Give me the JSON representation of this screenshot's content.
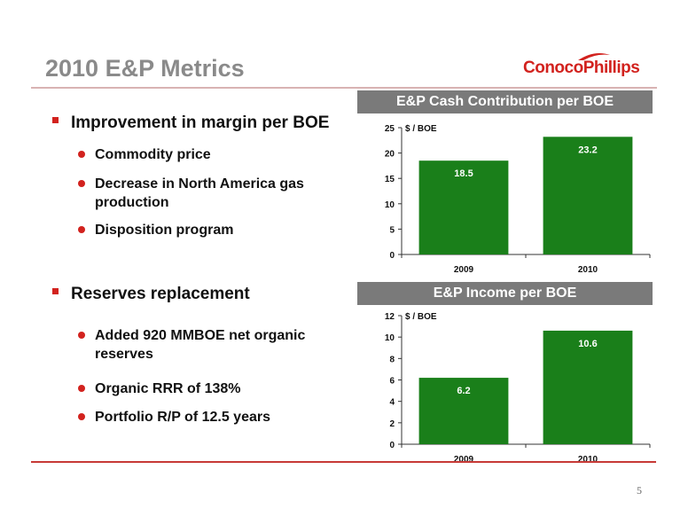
{
  "slide": {
    "title": "2010 E&P Metrics",
    "page_number": "5",
    "logo_text": "ConocoPhillips"
  },
  "bullets": [
    {
      "text": "Improvement in margin per BOE",
      "subs": [
        "Commodity price",
        "Decrease in North America gas production",
        "Disposition program"
      ]
    },
    {
      "text": "Reserves replacement",
      "subs": [
        "Added 920 MMBOE net organic reserves",
        "Organic RRR of 138%",
        "Portfolio R/P of 12.5 years"
      ]
    }
  ],
  "colors": {
    "bar": "#1a7f1a",
    "accent": "#d2221e",
    "header_bg": "#7a7a7a"
  },
  "chart_data": [
    {
      "type": "bar",
      "title": "E&P Cash Contribution per BOE",
      "ylabel": "$ / BOE",
      "categories": [
        "2009",
        "2010"
      ],
      "values": [
        18.5,
        23.2
      ],
      "value_labels": [
        "18.5",
        "23.2"
      ],
      "ylim": [
        0,
        25
      ],
      "yticks": [
        0,
        5,
        10,
        15,
        20,
        25
      ]
    },
    {
      "type": "bar",
      "title": "E&P Income per BOE",
      "ylabel": "$ / BOE",
      "categories": [
        "2009",
        "2010"
      ],
      "values": [
        6.2,
        10.6
      ],
      "value_labels": [
        "6.2",
        "10.6"
      ],
      "ylim": [
        0,
        12
      ],
      "yticks": [
        0,
        2,
        4,
        6,
        8,
        10,
        12
      ]
    }
  ]
}
